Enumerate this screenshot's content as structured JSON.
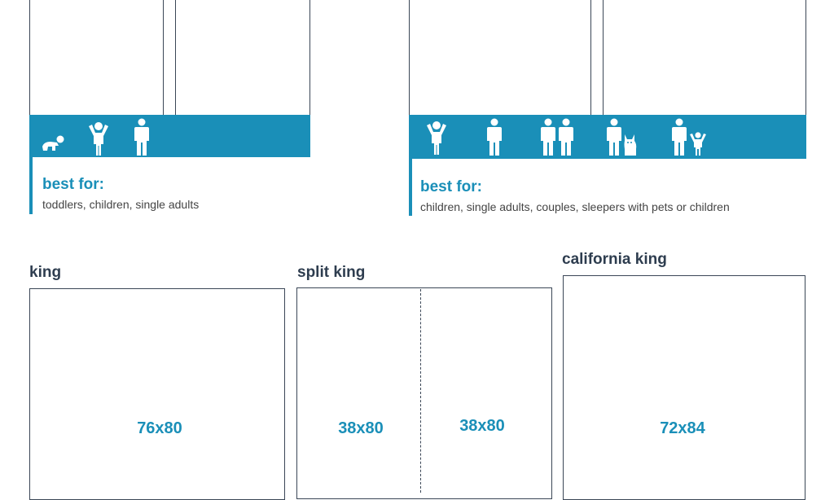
{
  "top_left": {
    "best_for_title": "best for:",
    "best_for_text": "toddlers, children, single adults",
    "icons": [
      "crawling-baby-icon",
      "child-icon",
      "adult-icon"
    ]
  },
  "top_right": {
    "best_for_title": "best for:",
    "best_for_text": "children, single adults, couples, sleepers with pets or children",
    "icons": [
      "child-icon",
      "adult-icon",
      "couple-icon",
      "adult-with-dog-icon",
      "adult-with-child-icon"
    ]
  },
  "beds": {
    "king": {
      "label": "king",
      "dimensions": "76x80"
    },
    "split_king": {
      "label": "split king",
      "dimensions_left": "38x80",
      "dimensions_right": "38x80"
    },
    "california_king": {
      "label": "california king",
      "dimensions": "72x84"
    }
  },
  "colors": {
    "accent": "#1a8fb8",
    "outline": "#3a4656",
    "label": "#2e3d4f"
  }
}
